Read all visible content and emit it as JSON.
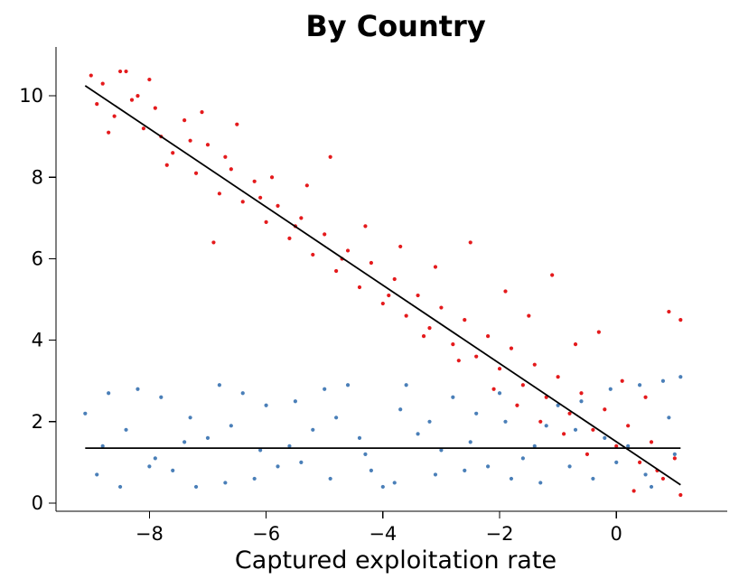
{
  "chart_data": {
    "type": "scatter",
    "title": "By Country",
    "xlabel": "Captured exploitation rate",
    "ylabel": "",
    "xlim": [
      -9.6,
      1.9
    ],
    "ylim": [
      -0.2,
      11.2
    ],
    "x_ticks": [
      -8,
      -6,
      -4,
      -2,
      0
    ],
    "x_tick_labels": [
      "−8",
      "−6",
      "−4",
      "−2",
      "0"
    ],
    "y_ticks": [
      0,
      2,
      4,
      6,
      8,
      10
    ],
    "y_tick_labels": [
      "0",
      "2",
      "4",
      "6",
      "8",
      "10"
    ],
    "grid": false,
    "legend": "none",
    "series": [
      {
        "color": "#4a7fb8",
        "marker_radius": 2.1,
        "points": [
          [
            -9.1,
            2.2
          ],
          [
            -8.8,
            1.4
          ],
          [
            -8.5,
            0.4
          ],
          [
            -8.2,
            2.8
          ],
          [
            -7.9,
            1.1
          ],
          [
            -7.6,
            0.8
          ],
          [
            -7.3,
            2.1
          ],
          [
            -7.0,
            1.6
          ],
          [
            -6.7,
            0.5
          ],
          [
            -6.4,
            2.7
          ],
          [
            -6.1,
            1.3
          ],
          [
            -5.8,
            0.9
          ],
          [
            -5.5,
            2.5
          ],
          [
            -5.2,
            1.8
          ],
          [
            -4.9,
            0.6
          ],
          [
            -4.6,
            2.9
          ],
          [
            -4.3,
            1.2
          ],
          [
            -4.0,
            0.4
          ],
          [
            -3.7,
            2.3
          ],
          [
            -3.4,
            1.7
          ],
          [
            -3.1,
            0.7
          ],
          [
            -2.8,
            2.6
          ],
          [
            -2.5,
            1.5
          ],
          [
            -2.2,
            0.9
          ],
          [
            -1.9,
            2.0
          ],
          [
            -1.6,
            1.1
          ],
          [
            -1.3,
            0.5
          ],
          [
            -1.0,
            2.4
          ],
          [
            -0.7,
            1.8
          ],
          [
            -0.4,
            0.6
          ],
          [
            -0.1,
            2.8
          ],
          [
            0.2,
            1.4
          ],
          [
            0.5,
            0.7
          ],
          [
            0.8,
            3.0
          ],
          [
            1.0,
            1.2
          ],
          [
            -8.9,
            0.7
          ],
          [
            -8.4,
            1.8
          ],
          [
            -7.8,
            2.6
          ],
          [
            -7.2,
            0.4
          ],
          [
            -6.6,
            1.9
          ],
          [
            -6.0,
            2.4
          ],
          [
            -5.4,
            1.0
          ],
          [
            -4.8,
            2.1
          ],
          [
            -4.2,
            0.8
          ],
          [
            -3.6,
            2.9
          ],
          [
            -3.0,
            1.3
          ],
          [
            -2.4,
            2.2
          ],
          [
            -1.8,
            0.6
          ],
          [
            -1.2,
            1.9
          ],
          [
            -0.6,
            2.5
          ],
          [
            0.0,
            1.0
          ],
          [
            0.4,
            2.9
          ],
          [
            0.9,
            2.1
          ],
          [
            -8.7,
            2.7
          ],
          [
            -8.0,
            0.9
          ],
          [
            -7.4,
            1.5
          ],
          [
            -6.8,
            2.9
          ],
          [
            -6.2,
            0.6
          ],
          [
            -5.6,
            1.4
          ],
          [
            -5.0,
            2.8
          ],
          [
            -4.4,
            1.6
          ],
          [
            -3.8,
            0.5
          ],
          [
            -3.2,
            2.0
          ],
          [
            -2.6,
            0.8
          ],
          [
            -2.0,
            2.7
          ],
          [
            -1.4,
            1.4
          ],
          [
            -0.8,
            0.9
          ],
          [
            -0.2,
            1.6
          ],
          [
            0.6,
            0.4
          ],
          [
            1.1,
            3.1
          ]
        ]
      },
      {
        "color": "#e41a1c",
        "marker_radius": 2.1,
        "points": [
          [
            -9.0,
            10.5
          ],
          [
            -8.9,
            9.8
          ],
          [
            -8.8,
            10.3
          ],
          [
            -8.6,
            9.5
          ],
          [
            -8.5,
            10.6
          ],
          [
            -8.3,
            9.9
          ],
          [
            -8.1,
            9.2
          ],
          [
            -8.0,
            10.4
          ],
          [
            -7.8,
            9.0
          ],
          [
            -7.6,
            8.6
          ],
          [
            -7.4,
            9.4
          ],
          [
            -7.2,
            8.1
          ],
          [
            -7.0,
            8.8
          ],
          [
            -6.8,
            7.6
          ],
          [
            -6.6,
            8.2
          ],
          [
            -6.4,
            7.4
          ],
          [
            -6.2,
            7.9
          ],
          [
            -6.0,
            6.9
          ],
          [
            -5.8,
            7.3
          ],
          [
            -5.6,
            6.5
          ],
          [
            -5.4,
            7.0
          ],
          [
            -5.2,
            6.1
          ],
          [
            -5.0,
            6.6
          ],
          [
            -4.8,
            5.7
          ],
          [
            -4.6,
            6.2
          ],
          [
            -4.4,
            5.3
          ],
          [
            -4.2,
            5.9
          ],
          [
            -4.0,
            4.9
          ],
          [
            -3.8,
            5.5
          ],
          [
            -3.6,
            4.6
          ],
          [
            -3.4,
            5.1
          ],
          [
            -3.2,
            4.3
          ],
          [
            -3.0,
            4.8
          ],
          [
            -2.8,
            3.9
          ],
          [
            -2.6,
            4.5
          ],
          [
            -2.4,
            3.6
          ],
          [
            -2.2,
            4.1
          ],
          [
            -2.0,
            3.3
          ],
          [
            -1.8,
            3.8
          ],
          [
            -1.6,
            2.9
          ],
          [
            -1.4,
            3.4
          ],
          [
            -1.2,
            2.6
          ],
          [
            -1.0,
            3.1
          ],
          [
            -0.8,
            2.2
          ],
          [
            -0.6,
            2.7
          ],
          [
            -0.4,
            1.8
          ],
          [
            -0.2,
            2.3
          ],
          [
            0.0,
            1.4
          ],
          [
            0.2,
            1.9
          ],
          [
            0.4,
            1.0
          ],
          [
            0.6,
            1.5
          ],
          [
            0.8,
            0.6
          ],
          [
            1.0,
            1.1
          ],
          [
            -8.7,
            9.1
          ],
          [
            -8.2,
            10.0
          ],
          [
            -7.7,
            8.3
          ],
          [
            -7.1,
            9.6
          ],
          [
            -6.9,
            6.4
          ],
          [
            -6.5,
            9.3
          ],
          [
            -5.9,
            8.0
          ],
          [
            -5.3,
            7.8
          ],
          [
            -4.9,
            8.5
          ],
          [
            -4.3,
            6.8
          ],
          [
            -3.7,
            6.3
          ],
          [
            -3.1,
            5.8
          ],
          [
            -2.5,
            6.4
          ],
          [
            -1.9,
            5.2
          ],
          [
            -1.5,
            4.6
          ],
          [
            -1.1,
            5.6
          ],
          [
            -0.7,
            3.9
          ],
          [
            -0.3,
            4.2
          ],
          [
            0.1,
            3.0
          ],
          [
            0.5,
            2.6
          ],
          [
            0.9,
            4.7
          ],
          [
            1.1,
            4.5
          ],
          [
            -8.4,
            10.6
          ],
          [
            -7.9,
            9.7
          ],
          [
            -7.3,
            8.9
          ],
          [
            -6.7,
            8.5
          ],
          [
            -6.1,
            7.5
          ],
          [
            -5.5,
            6.8
          ],
          [
            -4.7,
            6.0
          ],
          [
            -3.9,
            5.1
          ],
          [
            -3.3,
            4.1
          ],
          [
            -2.7,
            3.5
          ],
          [
            -2.1,
            2.8
          ],
          [
            -1.7,
            2.4
          ],
          [
            -1.3,
            2.0
          ],
          [
            -0.9,
            1.7
          ],
          [
            -0.5,
            1.2
          ],
          [
            0.3,
            0.3
          ],
          [
            0.7,
            0.8
          ],
          [
            1.1,
            0.2
          ]
        ]
      }
    ],
    "fit_lines": [
      {
        "color": "#000000",
        "x": [
          -9.1,
          1.1
        ],
        "y": [
          1.35,
          1.35
        ]
      },
      {
        "color": "#000000",
        "x": [
          -9.1,
          1.1
        ],
        "y": [
          10.25,
          0.45
        ]
      }
    ]
  }
}
